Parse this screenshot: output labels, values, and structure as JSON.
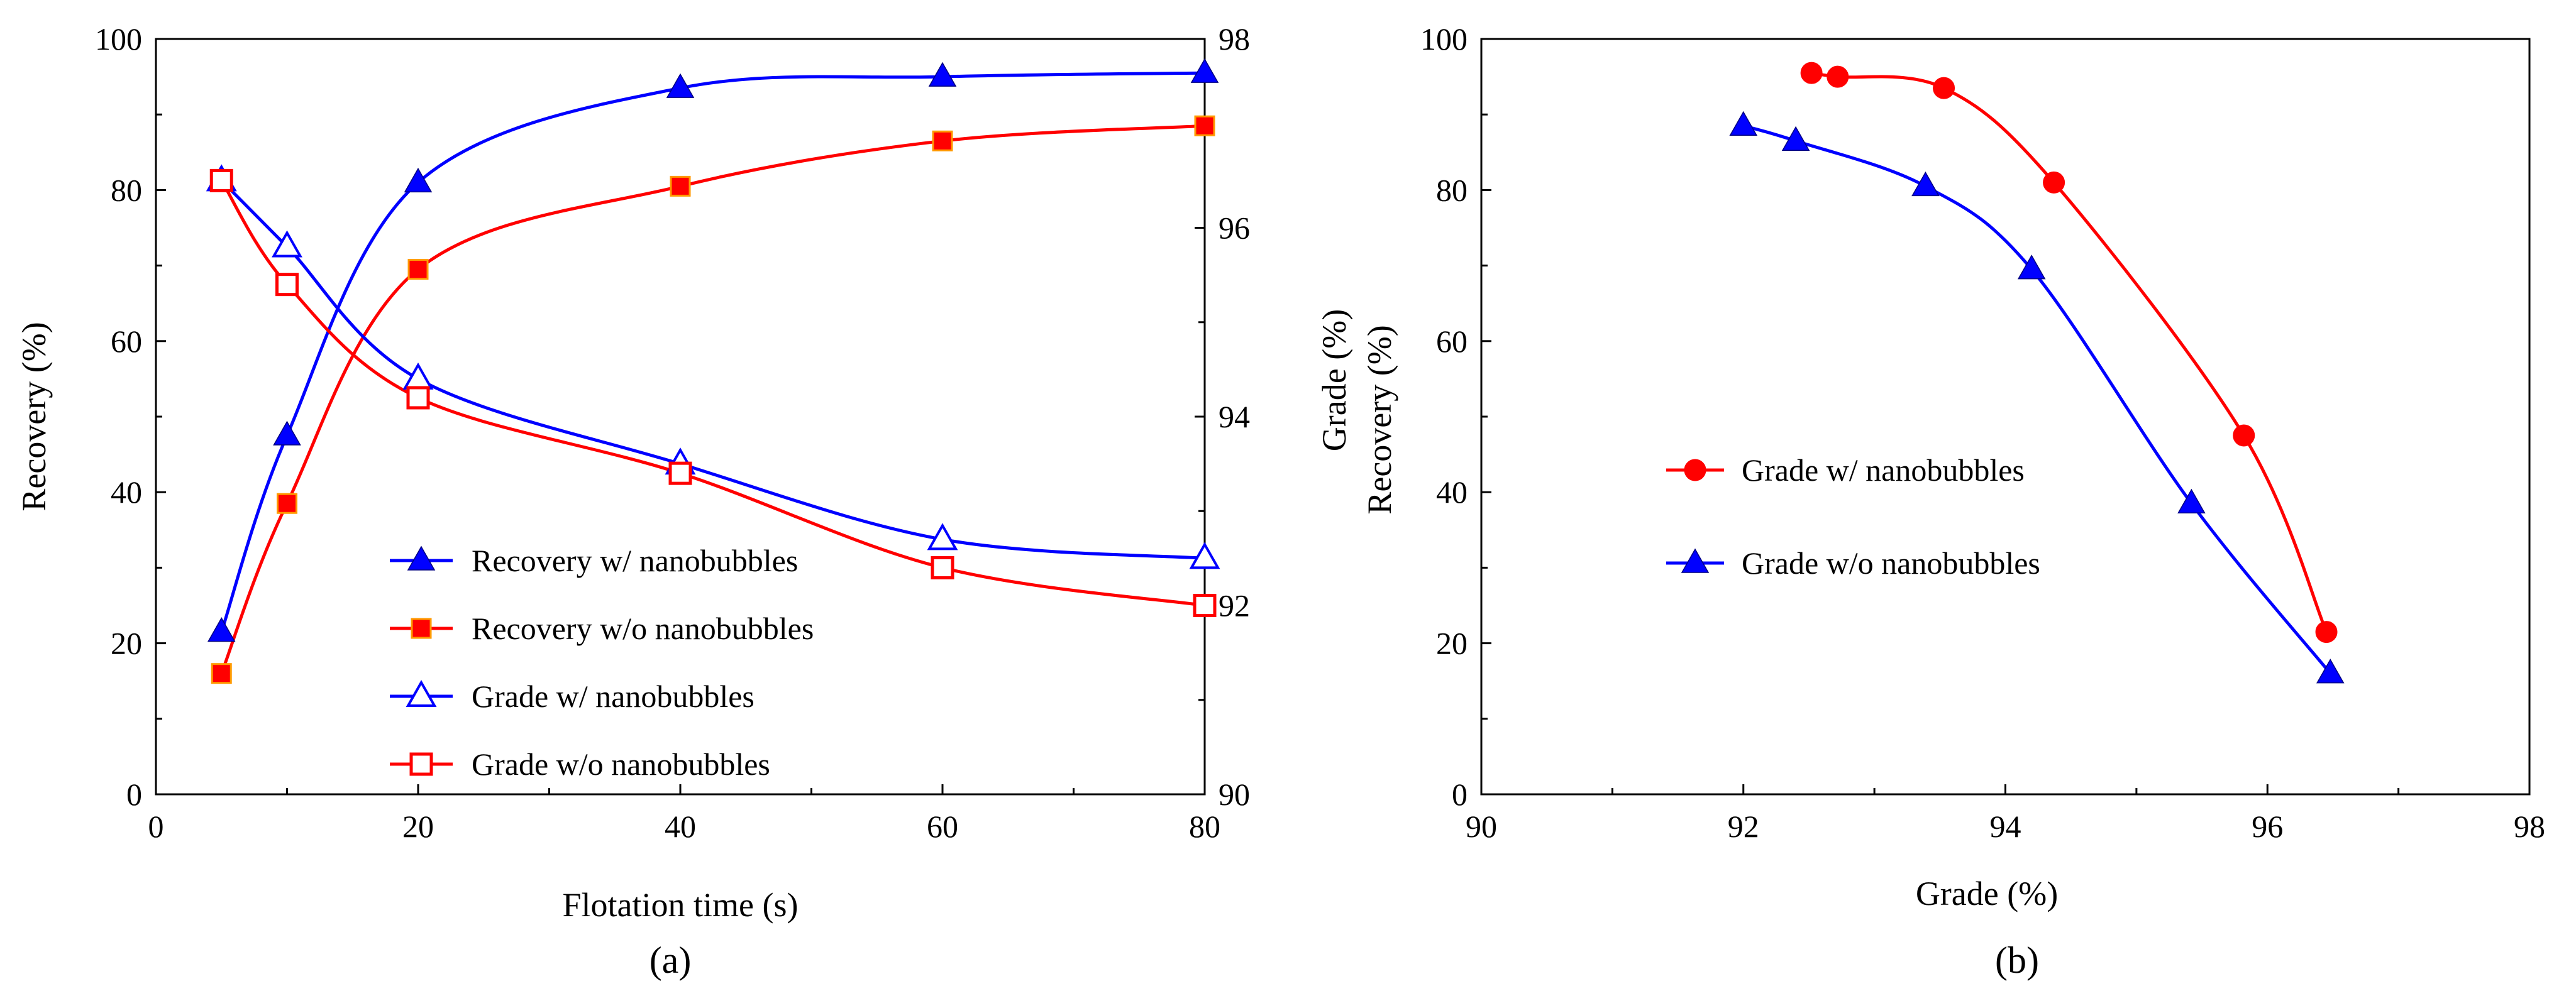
{
  "chart_data": [
    {
      "type": "line",
      "panel_label": "(a)",
      "xlabel": "Flotation time (s)",
      "ylabel": "Recovery (%)",
      "y2label": "Grade (%)",
      "xlim": [
        0,
        80
      ],
      "ylim": [
        0,
        100
      ],
      "y2lim": [
        90,
        98
      ],
      "x_ticks": [
        "0",
        "20",
        "40",
        "60",
        "80"
      ],
      "y_ticks": [
        "0",
        "20",
        "40",
        "60",
        "80",
        "100"
      ],
      "y2_ticks": [
        "90",
        "92",
        "94",
        "96",
        "98"
      ],
      "series": [
        {
          "name": "Recovery w/ nanobubbles",
          "axis": "left",
          "marker": "filled-triangle",
          "color": "#0000ff",
          "x": [
            5,
            10,
            20,
            40,
            60,
            80
          ],
          "y": [
            21.5,
            47.5,
            81,
            93.5,
            95,
            95.5
          ]
        },
        {
          "name": "Recovery w/o nanobubbles",
          "axis": "left",
          "marker": "filled-square",
          "color": "#ff0000",
          "x": [
            5,
            10,
            20,
            40,
            60,
            80
          ],
          "y": [
            16,
            38.5,
            69.5,
            80.5,
            86.5,
            88.5
          ]
        },
        {
          "name": "Grade w/ nanobubbles",
          "axis": "right",
          "marker": "open-triangle",
          "color": "#0000ff",
          "x": [
            5,
            10,
            20,
            40,
            60,
            80
          ],
          "y": [
            96.5,
            95.8,
            94.4,
            93.5,
            92.7,
            92.5
          ]
        },
        {
          "name": "Grade w/o nanobubbles",
          "axis": "right",
          "marker": "open-square",
          "color": "#ff0000",
          "x": [
            5,
            10,
            20,
            40,
            60,
            80
          ],
          "y": [
            96.5,
            95.4,
            94.2,
            93.4,
            92.4,
            92.0
          ]
        }
      ]
    },
    {
      "type": "line",
      "panel_label": "(b)",
      "xlabel": "Grade (%)",
      "ylabel": "Recovery (%)",
      "xlim": [
        90,
        98
      ],
      "ylim": [
        0,
        100
      ],
      "x_ticks": [
        "90",
        "92",
        "94",
        "96",
        "98"
      ],
      "y_ticks": [
        "0",
        "20",
        "40",
        "60",
        "80",
        "100"
      ],
      "series": [
        {
          "name": "Grade w/ nanobubbles",
          "marker": "filled-circle",
          "color": "#ff0000",
          "x": [
            96.45,
            95.82,
            94.37,
            93.53,
            92.72,
            92.52
          ],
          "y": [
            21.5,
            47.5,
            81,
            93.5,
            95,
            95.5
          ]
        },
        {
          "name": "Grade w/o nanobubbles",
          "marker": "filled-triangle",
          "color": "#0000ff",
          "x": [
            96.48,
            95.42,
            94.2,
            93.39,
            92.4,
            92.0
          ],
          "y": [
            16,
            38.5,
            69.5,
            80.5,
            86.5,
            88.5
          ]
        }
      ]
    }
  ]
}
